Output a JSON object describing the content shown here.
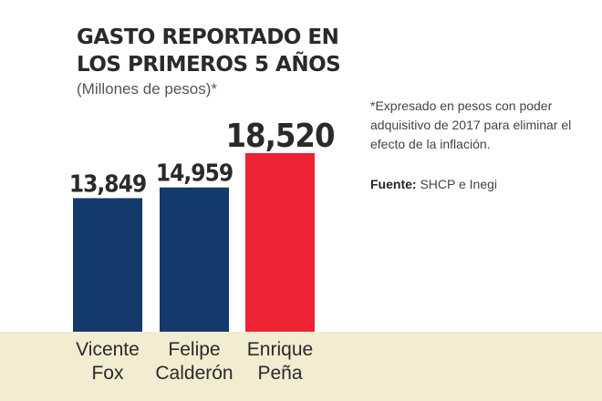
{
  "chart_data": {
    "type": "bar",
    "title": "GASTO REPORTADO EN LOS PRIMEROS 5 AÑOS",
    "subtitle": "(Millones de pesos)*",
    "categories": [
      [
        "Vicente",
        "Fox"
      ],
      [
        "Felipe",
        "Calderón"
      ],
      [
        "Enrique",
        "Peña"
      ]
    ],
    "values": [
      13849,
      14959,
      18520
    ],
    "value_labels": [
      "13,849",
      "14,959",
      "18,520"
    ],
    "colors": [
      "#143a6b",
      "#143a6b",
      "#ee2435"
    ],
    "ylim": [
      0,
      19500
    ],
    "grid": false,
    "legend": "none"
  },
  "notes": {
    "footnote": "*Expresado en pesos con poder adquisitivo de 2017 para eliminar el efecto de la inflación.",
    "source_label": "Fuente:",
    "source_text": "SHCP e Inegi"
  }
}
